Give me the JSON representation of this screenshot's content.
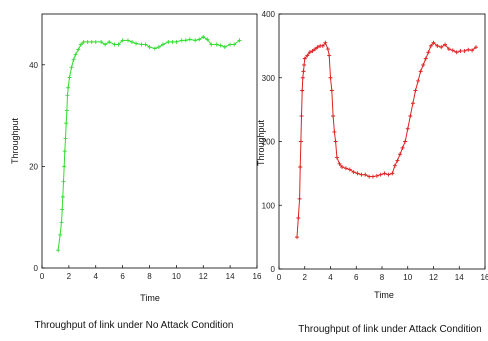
{
  "chart_data": [
    {
      "type": "line",
      "title": "Throughput of link under No Attack Condition",
      "xlabel": "Time",
      "ylabel": "Throughput",
      "xlim": [
        0,
        16
      ],
      "ylim": [
        0,
        50
      ],
      "xticks": [
        "0",
        "2",
        "4",
        "6",
        "8",
        "10",
        "12",
        "14",
        "16"
      ],
      "yticks": [
        "0",
        "20",
        "40"
      ],
      "color": "#33dd33",
      "marker": "plus",
      "series": [
        {
          "x": [
            1.2,
            1.35,
            1.45,
            1.5,
            1.55,
            1.6,
            1.65,
            1.7,
            1.75,
            1.8,
            1.85,
            1.9,
            1.95,
            2.05,
            2.2,
            2.35,
            2.5,
            2.7,
            2.9,
            3.1,
            3.4,
            3.7,
            4.0,
            4.4,
            4.7,
            5.0,
            5.4,
            5.7,
            6.0,
            6.4,
            6.7,
            7.0,
            7.4,
            7.7,
            8.0,
            8.4,
            8.7,
            9.0,
            9.4,
            9.7,
            10.0,
            10.4,
            10.7,
            11.0,
            11.4,
            11.7,
            12.0,
            12.3,
            12.6,
            13.0,
            13.3,
            13.6,
            14.0,
            14.3,
            14.7
          ],
          "y": [
            3.5,
            6.5,
            9,
            11.5,
            14,
            17,
            20,
            23,
            25.5,
            28.5,
            31,
            34,
            35.5,
            37.5,
            39.5,
            41,
            42,
            43,
            44,
            44.5,
            44.5,
            44.5,
            44.5,
            44.5,
            44,
            44.5,
            44,
            44,
            44.8,
            44.8,
            44.5,
            44.2,
            44,
            44,
            43.5,
            43.2,
            43.5,
            44,
            44.5,
            44.5,
            44.5,
            44.8,
            44.8,
            45,
            44.8,
            45,
            45.5,
            45,
            44,
            44,
            43.8,
            43.5,
            44,
            44,
            44.8
          ]
        }
      ]
    },
    {
      "type": "line",
      "title": "Throughput of link under Attack Condition",
      "xlabel": "Time",
      "ylabel": "Throughput",
      "xlim": [
        0,
        16
      ],
      "ylim": [
        0,
        400
      ],
      "xticks": [
        "0",
        "2",
        "4",
        "6",
        "8",
        "10",
        "12",
        "14",
        "16"
      ],
      "yticks": [
        "0",
        "100",
        "200",
        "300",
        "400"
      ],
      "color": "#dd2222",
      "marker": "plus",
      "series": [
        {
          "x": [
            1.4,
            1.5,
            1.6,
            1.65,
            1.7,
            1.75,
            1.8,
            1.85,
            1.9,
            1.95,
            2.0,
            2.2,
            2.4,
            2.6,
            2.8,
            3.0,
            3.2,
            3.4,
            3.6,
            3.8,
            3.9,
            4.0,
            4.1,
            4.2,
            4.3,
            4.4,
            4.5,
            4.7,
            4.9,
            5.2,
            5.5,
            5.8,
            6.1,
            6.4,
            6.7,
            7.0,
            7.3,
            7.6,
            7.9,
            8.2,
            8.5,
            8.8,
            9.0,
            9.2,
            9.4,
            9.6,
            9.8,
            10.0,
            10.2,
            10.4,
            10.6,
            10.8,
            11.0,
            11.2,
            11.4,
            11.6,
            11.8,
            12.0,
            12.3,
            12.6,
            12.9,
            13.2,
            13.5,
            13.8,
            14.1,
            14.4,
            14.7,
            15.0,
            15.3
          ],
          "y": [
            50,
            80,
            110,
            160,
            200,
            240,
            280,
            300,
            310,
            320,
            330,
            335,
            340,
            342,
            345,
            348,
            350,
            350,
            355,
            345,
            335,
            300,
            280,
            240,
            215,
            200,
            175,
            165,
            160,
            158,
            156,
            152,
            150,
            148,
            148,
            145,
            145,
            146,
            148,
            150,
            148,
            150,
            162,
            170,
            180,
            190,
            200,
            220,
            240,
            260,
            280,
            295,
            310,
            320,
            330,
            340,
            350,
            355,
            350,
            348,
            352,
            345,
            343,
            340,
            342,
            342,
            344,
            343,
            348
          ]
        }
      ]
    }
  ]
}
